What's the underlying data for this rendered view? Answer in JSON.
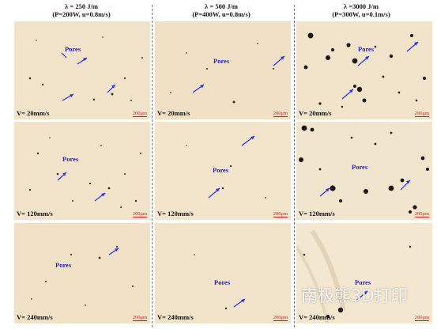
{
  "columns": [
    {
      "lambda": "λ = 250 J/m",
      "params": "(P=200W, u=0.8m/s)",
      "accent": "#f1e2c8"
    },
    {
      "lambda": "λ = 500 J/m",
      "params": "(P=400W, u=0.8m/s)",
      "accent": "#f0e1c6"
    },
    {
      "lambda": "λ =3000 J/m",
      "params": "(P=300W, u=0.1m/s)",
      "accent": "#f2e4cb"
    }
  ],
  "rows": [
    {
      "speed": "V= 20mm/s"
    },
    {
      "speed": "V= 120mm/s"
    },
    {
      "speed": "V= 240mm/s"
    }
  ],
  "pores_label": "Pores",
  "scale_label": "200μm",
  "arrow_color": "#2233ee",
  "watermark": "南极熊3D打印"
}
